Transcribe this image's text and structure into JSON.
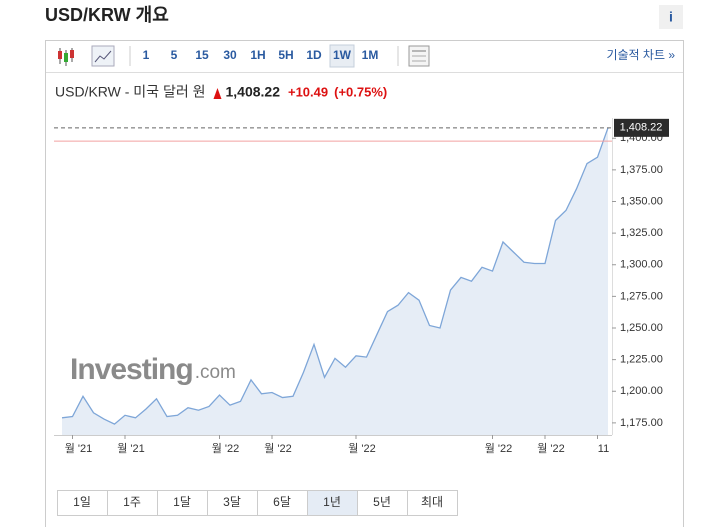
{
  "header": {
    "title": "USD/KRW 개요",
    "info": "i"
  },
  "toolbar": {
    "intervals": [
      "1",
      "5",
      "15",
      "30",
      "1H",
      "5H",
      "1D",
      "1W",
      "1M"
    ],
    "active": "1W",
    "technical": "기술적 차트 »"
  },
  "quote": {
    "name": "USD/KRW - 미국 달러 원",
    "price": "1,408.22",
    "change": "+10.49",
    "change_pct": "(+0.75%)"
  },
  "chart_data": {
    "type": "area",
    "categories": [
      null,
      "월 '21",
      null,
      null,
      null,
      null,
      "월 '21",
      null,
      null,
      null,
      null,
      null,
      null,
      null,
      null,
      "월 '22",
      null,
      null,
      null,
      null,
      "월 '22",
      null,
      null,
      null,
      null,
      null,
      null,
      null,
      "월 '22",
      null,
      null,
      null,
      null,
      null,
      null,
      null,
      null,
      null,
      null,
      null,
      null,
      "월 '22",
      null,
      null,
      null,
      null,
      "월 '22",
      null,
      null,
      null,
      null,
      "11",
      null
    ],
    "values": [
      1179,
      1180,
      1196,
      1183,
      1178,
      1174,
      1181,
      1179,
      1186,
      1194,
      1180,
      1181,
      1187,
      1185,
      1188,
      1197,
      1189,
      1192,
      1209,
      1198,
      1199,
      1195,
      1196,
      1215,
      1237,
      1211,
      1226,
      1219,
      1228,
      1227,
      1245,
      1263,
      1268,
      1278,
      1272,
      1252,
      1250,
      1280,
      1290,
      1287,
      1298,
      1295,
      1318,
      1310,
      1302,
      1301,
      1301,
      1335,
      1343,
      1360,
      1380,
      1385,
      1408.22
    ],
    "color": "#7ea6d8",
    "ylim": [
      1167,
      1416
    ],
    "yticks": [
      {
        "value": 1175,
        "label": "1,175.00"
      },
      {
        "value": 1200,
        "label": "1,200.00"
      },
      {
        "value": 1225,
        "label": "1,225.00"
      },
      {
        "value": 1250,
        "label": "1,250.00"
      },
      {
        "value": 1275,
        "label": "1,275.00"
      },
      {
        "value": 1300,
        "label": "1,300.00"
      },
      {
        "value": 1325,
        "label": "1,325.00"
      },
      {
        "value": 1350,
        "label": "1,350.00"
      },
      {
        "value": 1375,
        "label": "1,375.00"
      },
      {
        "value": 1400,
        "label": "1,400.00"
      }
    ],
    "reference_line": 1397.73
  },
  "watermark": {
    "brand": "Investing",
    "suffix": ".com"
  },
  "ranges": {
    "buttons": [
      "1일",
      "1주",
      "1달",
      "3달",
      "6달",
      "1년",
      "5년",
      "최대"
    ],
    "active": "1년"
  }
}
